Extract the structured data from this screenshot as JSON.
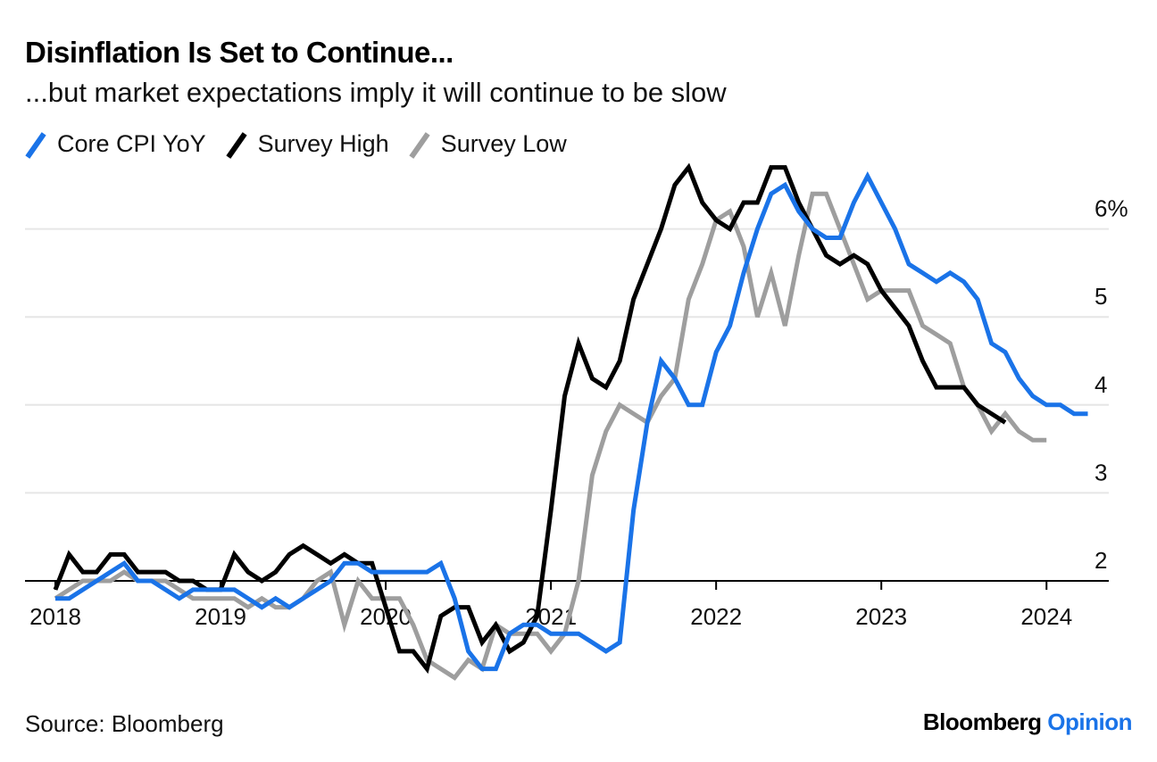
{
  "header": {
    "title": "Disinflation Is Set to Continue...",
    "subtitle": "...but market expectations imply it will continue to be slow"
  },
  "footer": {
    "source": "Source: Bloomberg",
    "brand_main": "Bloomberg",
    "brand_accent": "Opinion"
  },
  "colors": {
    "core_cpi": "#1a73e8",
    "survey_high": "#000000",
    "survey_low": "#9e9e9e",
    "gridline": "#e6e6e6",
    "baseline": "#000000"
  },
  "chart_data": {
    "type": "line",
    "title": "Disinflation Is Set to Continue...",
    "subtitle": "...but market expectations imply it will continue to be slow",
    "xlabel": "",
    "ylabel": "",
    "ylim": [
      1.0,
      6.6
    ],
    "y_axis_side": "right",
    "y_ticks": [
      {
        "value": 2,
        "label": "2"
      },
      {
        "value": 3,
        "label": "3"
      },
      {
        "value": 4,
        "label": "4"
      },
      {
        "value": 5,
        "label": "5"
      },
      {
        "value": 6,
        "label": "6%"
      }
    ],
    "x_ticks": [
      "2018",
      "2019",
      "2020",
      "2021",
      "2022",
      "2023",
      "2024"
    ],
    "x_start": "2018-01",
    "grid": true,
    "legend_position": "top-left",
    "series": [
      {
        "name": "Core CPI YoY",
        "color_key": "core_cpi",
        "values": [
          1.8,
          1.8,
          1.9,
          2.0,
          2.1,
          2.2,
          2.0,
          2.0,
          1.9,
          1.8,
          1.9,
          1.9,
          1.9,
          1.9,
          1.8,
          1.7,
          1.8,
          1.7,
          1.8,
          1.9,
          2.0,
          2.2,
          2.2,
          2.1,
          2.1,
          2.1,
          2.1,
          2.1,
          2.2,
          1.8,
          1.2,
          1.0,
          1.0,
          1.4,
          1.5,
          1.5,
          1.4,
          1.4,
          1.4,
          1.3,
          1.2,
          1.3,
          2.8,
          3.8,
          4.5,
          4.3,
          4.0,
          4.0,
          4.6,
          4.9,
          5.5,
          6.0,
          6.4,
          6.5,
          6.2,
          6.0,
          5.9,
          5.9,
          6.3,
          6.6,
          6.3,
          6.0,
          5.6,
          5.5,
          5.4,
          5.5,
          5.4,
          5.2,
          4.7,
          4.6,
          4.3,
          4.1,
          4.0,
          4.0,
          3.9,
          3.9
        ]
      },
      {
        "name": "Survey High",
        "color_key": "survey_high",
        "values": [
          1.9,
          2.3,
          2.1,
          2.1,
          2.3,
          2.3,
          2.1,
          2.1,
          2.1,
          2.0,
          2.0,
          1.9,
          1.9,
          2.3,
          2.1,
          2.0,
          2.1,
          2.3,
          2.4,
          2.3,
          2.2,
          2.3,
          2.2,
          2.2,
          1.7,
          1.2,
          1.2,
          1.0,
          1.6,
          1.7,
          1.7,
          1.3,
          1.5,
          1.2,
          1.3,
          1.6,
          2.8,
          4.1,
          4.7,
          4.3,
          4.2,
          4.5,
          5.2,
          5.6,
          6.0,
          6.5,
          6.7,
          6.3,
          6.1,
          6.0,
          6.3,
          6.3,
          6.7,
          6.7,
          6.3,
          6.0,
          5.7,
          5.6,
          5.7,
          5.6,
          5.3,
          5.1,
          4.9,
          4.5,
          4.2,
          4.2,
          4.2,
          4.0,
          3.9,
          3.8
        ]
      },
      {
        "name": "Survey Low",
        "color_key": "survey_low",
        "values": [
          1.8,
          1.9,
          2.0,
          2.0,
          2.0,
          2.1,
          2.0,
          2.0,
          2.0,
          1.9,
          1.8,
          1.8,
          1.8,
          1.8,
          1.7,
          1.8,
          1.7,
          1.7,
          1.8,
          2.0,
          2.1,
          1.5,
          2.0,
          1.8,
          1.8,
          1.8,
          1.5,
          1.1,
          1.0,
          0.9,
          1.1,
          1.0,
          1.5,
          1.4,
          1.4,
          1.4,
          1.2,
          1.4,
          2.0,
          3.2,
          3.7,
          4.0,
          3.9,
          3.8,
          4.1,
          4.3,
          5.2,
          5.6,
          6.1,
          6.2,
          5.8,
          5.0,
          5.5,
          4.9,
          5.7,
          6.4,
          6.4,
          6.0,
          5.6,
          5.2,
          5.3,
          5.3,
          5.3,
          4.9,
          4.8,
          4.7,
          4.2,
          4.0,
          3.7,
          3.9,
          3.7,
          3.6,
          3.6
        ]
      }
    ]
  }
}
